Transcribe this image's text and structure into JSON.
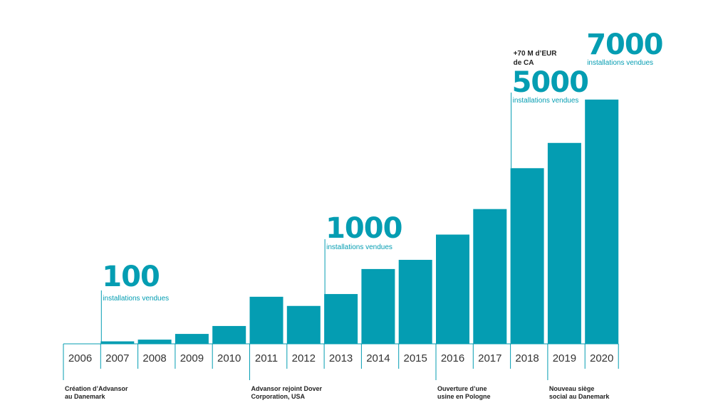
{
  "chart_data": {
    "type": "bar",
    "title": "",
    "xlabel": "",
    "ylabel": "",
    "categories": [
      "2006",
      "2007",
      "2008",
      "2009",
      "2010",
      "2011",
      "2012",
      "2013",
      "2014",
      "2015",
      "2016",
      "2017",
      "2018",
      "2019",
      "2020"
    ],
    "values": [
      0,
      100,
      170,
      400,
      720,
      1900,
      1530,
      2010,
      3020,
      3390,
      4410,
      5440,
      7090,
      8110,
      9860
    ],
    "ylim": [
      0,
      10000
    ],
    "color": "#049db2",
    "grid": false,
    "milestones": [
      {
        "year": "2007",
        "value_text": "100",
        "sub_text": "installations vendues"
      },
      {
        "year": "2013",
        "value_text": "1000",
        "sub_text": "installations vendues"
      },
      {
        "year": "2018",
        "value_text": "5000",
        "sub_text": "installations vendues",
        "note_line1": "+70 M d’EUR",
        "note_line2": "de CA"
      },
      {
        "year": "2020",
        "value_text": "7000",
        "sub_text": "installations vendues"
      }
    ],
    "events": [
      {
        "year": "2006",
        "line1": "Création d’Advansor",
        "line2": "au Danemark"
      },
      {
        "year": "2011",
        "line1": "Advansor rejoint Dover",
        "line2": "Corporation,  USA"
      },
      {
        "year": "2016",
        "line1": "Ouverture d’une",
        "line2": "usine en Pologne"
      },
      {
        "year": "2019",
        "line1": "Nouveau siège",
        "line2": "social au Danemark"
      }
    ]
  }
}
